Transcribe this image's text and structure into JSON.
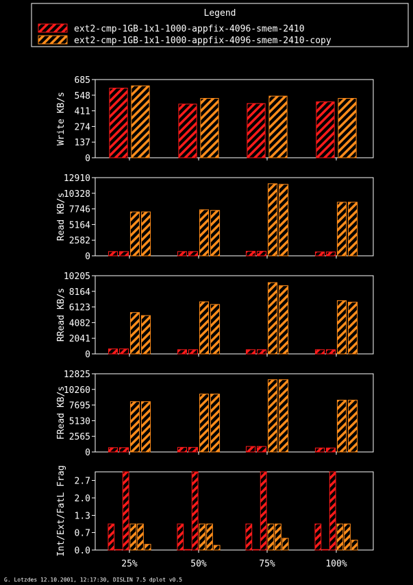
{
  "legend": {
    "title": "Legend",
    "entries": [
      "ext2-cmp-1GB-1x1-1000-appfix-4096-smem-2410",
      "ext2-cmp-1GB-1x1-1000-appfix-4096-smem-2410-copy"
    ]
  },
  "colors": {
    "series1": "#ff1a1a",
    "series2": "#ff8c1a",
    "background": "#000000",
    "axes": "#ffffff"
  },
  "footer": "G. Lotzdes 12.10.2001, 12:17:30, DISLIN 7.5 dplot v0.5",
  "chart_data": [
    {
      "type": "bar",
      "ylabel": "Write KB/s",
      "ylim": [
        0,
        685
      ],
      "yticks": [
        "0",
        "137",
        "274",
        "411",
        "548",
        "685"
      ],
      "categories": [
        "25%",
        "50%",
        "75%",
        "100%"
      ],
      "bars_per_group": 2,
      "series": [
        {
          "name": "ext2-cmp-1GB-1x1-1000-appfix-4096-smem-2410",
          "values": [
            [
              610
            ],
            [
              470
            ],
            [
              475
            ],
            [
              490
            ]
          ]
        },
        {
          "name": "ext2-cmp-1GB-1x1-1000-appfix-4096-smem-2410-copy",
          "values": [
            [
              630
            ],
            [
              520
            ],
            [
              540
            ],
            [
              520
            ]
          ]
        }
      ]
    },
    {
      "type": "bar",
      "ylabel": "Read KB/s",
      "ylim": [
        0,
        12910
      ],
      "yticks": [
        "0",
        "2582",
        "5164",
        "7746",
        "10328",
        "12910"
      ],
      "categories": [
        "25%",
        "50%",
        "75%",
        "100%"
      ],
      "bars_per_group": 4,
      "series": [
        {
          "name": "ext2-cmp-1GB-1x1-1000-appfix-4096-smem-2410",
          "values": [
            [
              700,
              700
            ],
            [
              700,
              700
            ],
            [
              750,
              750
            ],
            [
              650,
              650
            ]
          ]
        },
        {
          "name": "ext2-cmp-1GB-1x1-1000-appfix-4096-smem-2410-copy",
          "values": [
            [
              7250,
              7250
            ],
            [
              7600,
              7500
            ],
            [
              11900,
              11800
            ],
            [
              8850,
              8850
            ]
          ]
        }
      ]
    },
    {
      "type": "bar",
      "ylabel": "RRead KB/s",
      "ylim": [
        0,
        10205
      ],
      "yticks": [
        "0",
        "2041",
        "4082",
        "6123",
        "8164",
        "10205"
      ],
      "categories": [
        "25%",
        "50%",
        "75%",
        "100%"
      ],
      "bars_per_group": 4,
      "series": [
        {
          "name": "ext2-cmp-1GB-1x1-1000-appfix-4096-smem-2410",
          "values": [
            [
              650,
              650
            ],
            [
              550,
              550
            ],
            [
              550,
              550
            ],
            [
              550,
              550
            ]
          ]
        },
        {
          "name": "ext2-cmp-1GB-1x1-1000-appfix-4096-smem-2410-copy",
          "values": [
            [
              5400,
              5000
            ],
            [
              6800,
              6450
            ],
            [
              9300,
              8900
            ],
            [
              6950,
              6750
            ]
          ]
        }
      ]
    },
    {
      "type": "bar",
      "ylabel": "FRead KB/s",
      "ylim": [
        0,
        12825
      ],
      "yticks": [
        "0",
        "2565",
        "5130",
        "7695",
        "10260",
        "12825"
      ],
      "categories": [
        "25%",
        "50%",
        "75%",
        "100%"
      ],
      "bars_per_group": 4,
      "series": [
        {
          "name": "ext2-cmp-1GB-1x1-1000-appfix-4096-smem-2410",
          "values": [
            [
              700,
              700
            ],
            [
              750,
              750
            ],
            [
              900,
              900
            ],
            [
              650,
              650
            ]
          ]
        },
        {
          "name": "ext2-cmp-1GB-1x1-1000-appfix-4096-smem-2410-copy",
          "values": [
            [
              8250,
              8250
            ],
            [
              9500,
              9500
            ],
            [
              11850,
              11850
            ],
            [
              8500,
              8500
            ]
          ]
        }
      ]
    },
    {
      "type": "bar",
      "ylabel": "Int/Ext/FatL Frag",
      "ylim": [
        0,
        3.0
      ],
      "yticks": [
        "0.0",
        "0.7",
        "1.3",
        "2.0",
        "2.7"
      ],
      "ytick_values": [
        0,
        0.67,
        1.33,
        2.0,
        2.67
      ],
      "categories": [
        "25%",
        "50%",
        "75%",
        "100%"
      ],
      "bars_per_group": 6,
      "series": [
        {
          "name": "ext2-cmp-1GB-1x1-1000-appfix-4096-smem-2410",
          "values": [
            [
              1.0,
              0.02,
              3.0
            ],
            [
              1.0,
              0.02,
              3.0
            ],
            [
              1.0,
              0.02,
              3.0
            ],
            [
              1.0,
              0.02,
              3.0
            ]
          ]
        },
        {
          "name": "ext2-cmp-1GB-1x1-1000-appfix-4096-smem-2410-copy",
          "values": [
            [
              1.0,
              1.0,
              0.22
            ],
            [
              1.0,
              1.0,
              0.18
            ],
            [
              1.0,
              1.0,
              0.45
            ],
            [
              1.0,
              1.0,
              0.38
            ]
          ]
        }
      ]
    }
  ]
}
